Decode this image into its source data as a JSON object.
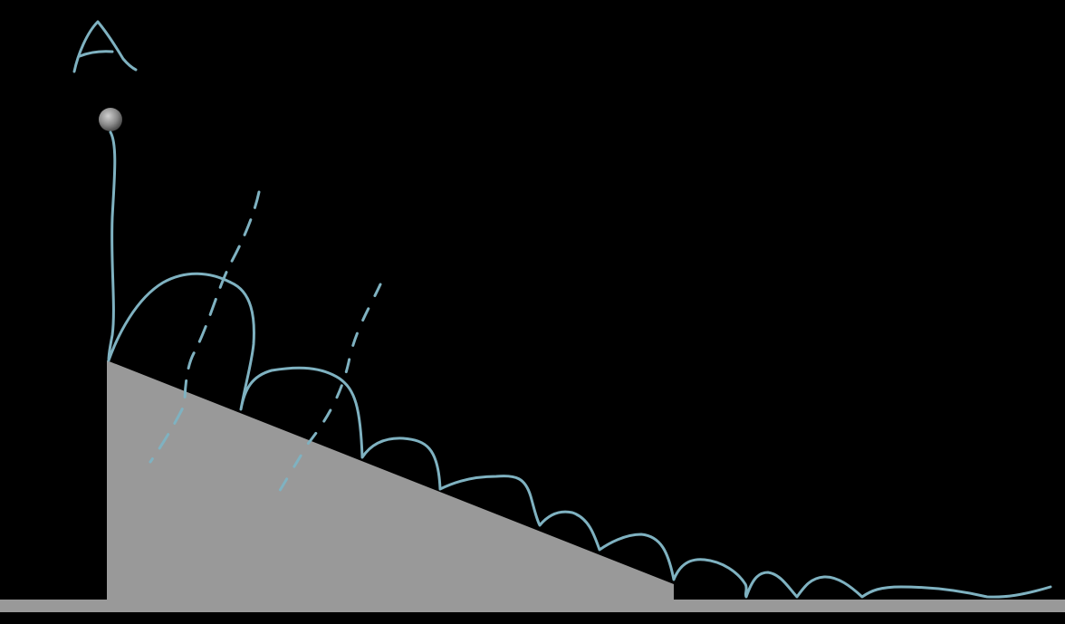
{
  "diagram": {
    "label": "A",
    "colors": {
      "background": "#000000",
      "ground": "#999999",
      "ramp": "#999999",
      "trajectory": "#7fb2c1",
      "ball_light": "#c8c8c8",
      "ball_dark": "#5a5a5a"
    }
  }
}
